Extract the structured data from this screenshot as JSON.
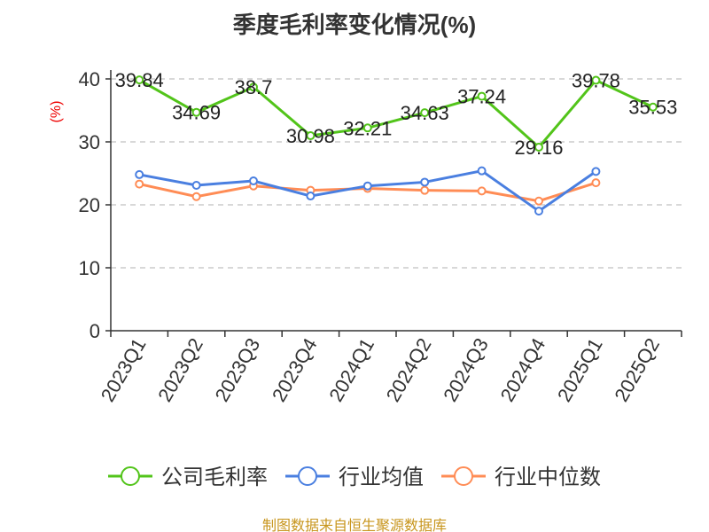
{
  "chart_data": {
    "type": "line",
    "title": "季度毛利率变化情况(%)",
    "ylabel": "(%)",
    "xlabel": "",
    "ylim": [
      0,
      40
    ],
    "yticks": [
      "0",
      "10",
      "20",
      "30",
      "40"
    ],
    "grid": true,
    "legend_position": "bottom",
    "categories": [
      "2023Q1",
      "2023Q2",
      "2023Q3",
      "2023Q4",
      "2024Q1",
      "2024Q2",
      "2024Q3",
      "2024Q4",
      "2025Q1",
      "2025Q2"
    ],
    "series": [
      {
        "name": "公司毛利率",
        "color": "#52c41a",
        "labels": true,
        "values": [
          39.84,
          34.69,
          38.7,
          30.98,
          32.21,
          34.63,
          37.24,
          29.16,
          39.78,
          35.53
        ],
        "label_text": [
          "39.84",
          "34.69",
          "38.7",
          "30.98",
          "32.21",
          "34.63",
          "37.24",
          "29.16",
          "39.78",
          "35.53"
        ]
      },
      {
        "name": "行业均值",
        "color": "#4a7fe0",
        "labels": false,
        "values": [
          24.8,
          23.1,
          23.8,
          21.4,
          23.0,
          23.6,
          25.4,
          19.0,
          25.3,
          null
        ]
      },
      {
        "name": "行业中位数",
        "color": "#ff8c55",
        "labels": false,
        "values": [
          23.3,
          21.3,
          23.0,
          22.3,
          22.6,
          22.3,
          22.2,
          20.6,
          23.5,
          null
        ]
      }
    ]
  },
  "source": "制图数据来自恒生聚源数据库"
}
